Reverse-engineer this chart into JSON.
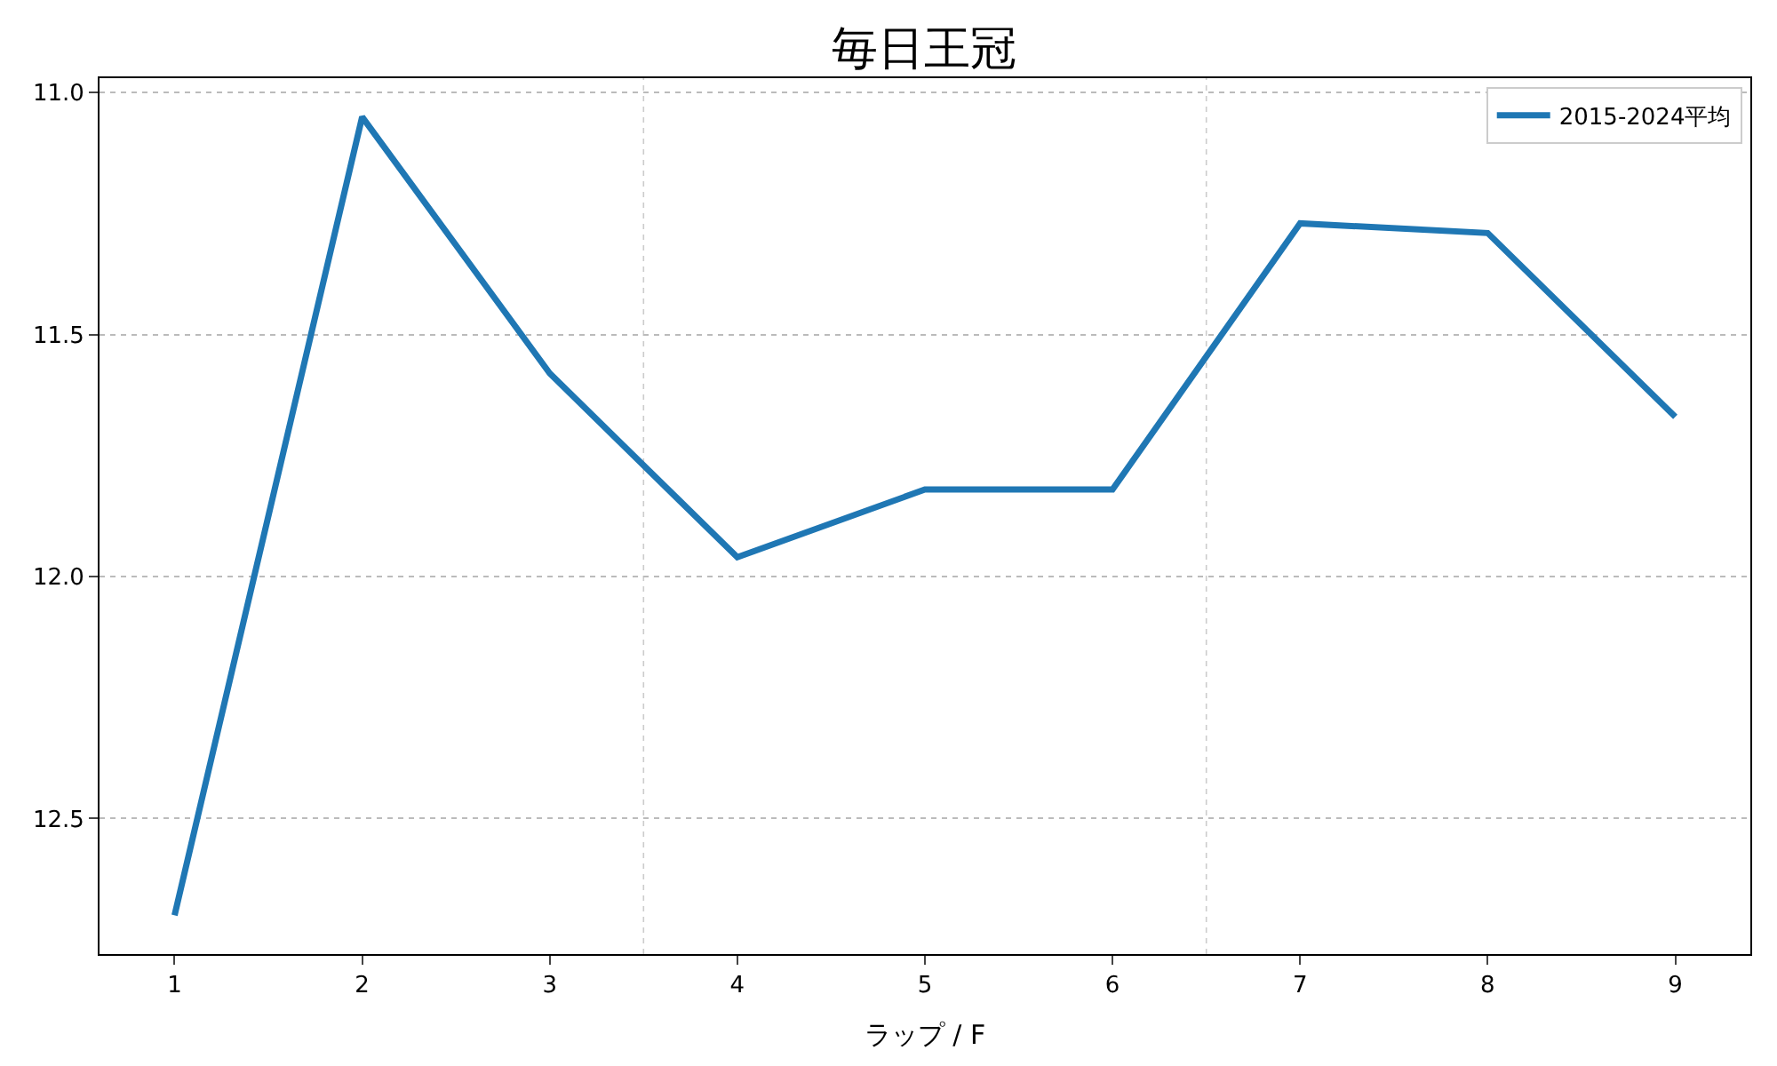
{
  "chart_data": {
    "type": "line",
    "title": "毎日王冠",
    "xlabel": "ラップ / F",
    "x": [
      1,
      2,
      3,
      4,
      5,
      6,
      7,
      8,
      9
    ],
    "series": [
      {
        "name": "2015-2024平均",
        "color": "#1f77b4",
        "values": [
          12.7,
          11.05,
          11.58,
          11.96,
          11.82,
          11.82,
          11.27,
          11.29,
          11.67
        ]
      }
    ],
    "xlim": [
      0.6,
      9.4
    ],
    "xticks": [
      1,
      2,
      3,
      4,
      5,
      6,
      7,
      8,
      9
    ],
    "ylim": [
      12.78,
      10.97
    ],
    "yticks": [
      {
        "value": 11.0,
        "label": "11.0"
      },
      {
        "value": 11.5,
        "label": "11.5"
      },
      {
        "value": 12.0,
        "label": "12.0"
      },
      {
        "value": 12.5,
        "label": "12.5"
      }
    ],
    "grid": "y",
    "legend": "top right",
    "line_style": "solid",
    "marker": "none",
    "ref_lines": [
      {
        "axis": "x",
        "value": 3.5,
        "color": "#cccccc",
        "line_style": "dotted"
      },
      {
        "axis": "x",
        "value": 6.5,
        "color": "#cccccc",
        "line_style": "dotted"
      }
    ]
  }
}
